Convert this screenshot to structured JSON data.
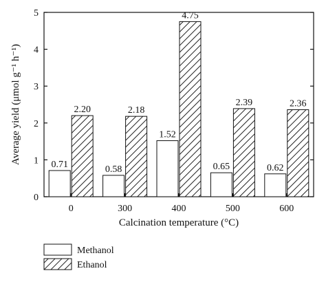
{
  "chart_data": {
    "type": "bar",
    "categories": [
      "0",
      "300",
      "400",
      "500",
      "600"
    ],
    "series": [
      {
        "name": "Methanol",
        "values": [
          0.71,
          0.58,
          1.52,
          0.65,
          0.62
        ],
        "value_labels": [
          "0.71",
          "0.58",
          "1.52",
          "0.65",
          "0.62"
        ],
        "pattern": "none"
      },
      {
        "name": "Ethanol",
        "values": [
          2.2,
          2.18,
          4.75,
          2.39,
          2.36
        ],
        "value_labels": [
          "2.20",
          "2.18",
          "4.75",
          "2.39",
          "2.36"
        ],
        "pattern": "hatch"
      }
    ],
    "xlabel": "Calcination temperature (°C)",
    "ylabel": "Average yield (μmol g⁻¹ h⁻¹)",
    "ylim": [
      0,
      5
    ],
    "yticks": [
      "0",
      "1",
      "2",
      "3",
      "4",
      "5"
    ],
    "grid": false,
    "legend_position": "bottom-left"
  }
}
